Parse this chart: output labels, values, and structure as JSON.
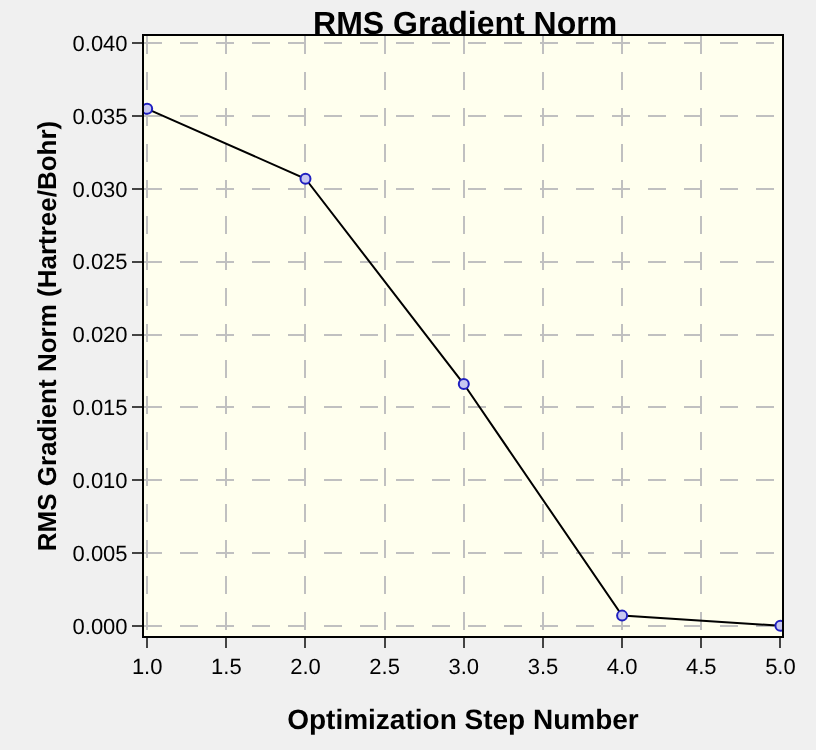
{
  "chart_data": {
    "type": "line",
    "title": "RMS Gradient Norm",
    "xlabel": "Optimization Step Number",
    "ylabel": "RMS Gradient Norm (Hartree/Bohr)",
    "x": [
      1,
      2,
      3,
      4,
      5
    ],
    "series": [
      {
        "color": "#000000",
        "values": [
          0.0355,
          0.0307,
          0.0166,
          0.0007,
          0.0
        ]
      }
    ],
    "xlim": [
      0.98,
      5.01
    ],
    "xticks": [
      {
        "value": 1,
        "label": "1.0"
      },
      {
        "value": 1.5,
        "label": "1.5"
      },
      {
        "value": 2,
        "label": "2.0"
      },
      {
        "value": 2.5,
        "label": "2.5"
      },
      {
        "value": 3,
        "label": "3.0"
      },
      {
        "value": 3.5,
        "label": "3.5"
      },
      {
        "value": 4,
        "label": "4.0"
      },
      {
        "value": 4.5,
        "label": "4.5"
      },
      {
        "value": 5,
        "label": "5.0"
      }
    ],
    "ylim": [
      -0.0007,
      0.0405
    ],
    "yticks": [
      {
        "value": 0,
        "label": "0.000"
      },
      {
        "value": 0.005,
        "label": "0.005"
      },
      {
        "value": 0.01,
        "label": "0.010"
      },
      {
        "value": 0.015,
        "label": "0.015"
      },
      {
        "value": 0.02,
        "label": "0.020"
      },
      {
        "value": 0.025,
        "label": "0.025"
      },
      {
        "value": 0.03,
        "label": "0.030"
      },
      {
        "value": 0.035,
        "label": "0.035"
      },
      {
        "value": 0.04,
        "label": "0.040"
      }
    ],
    "grid": true,
    "marker": "circle",
    "line_style": "solid",
    "legend": false
  }
}
